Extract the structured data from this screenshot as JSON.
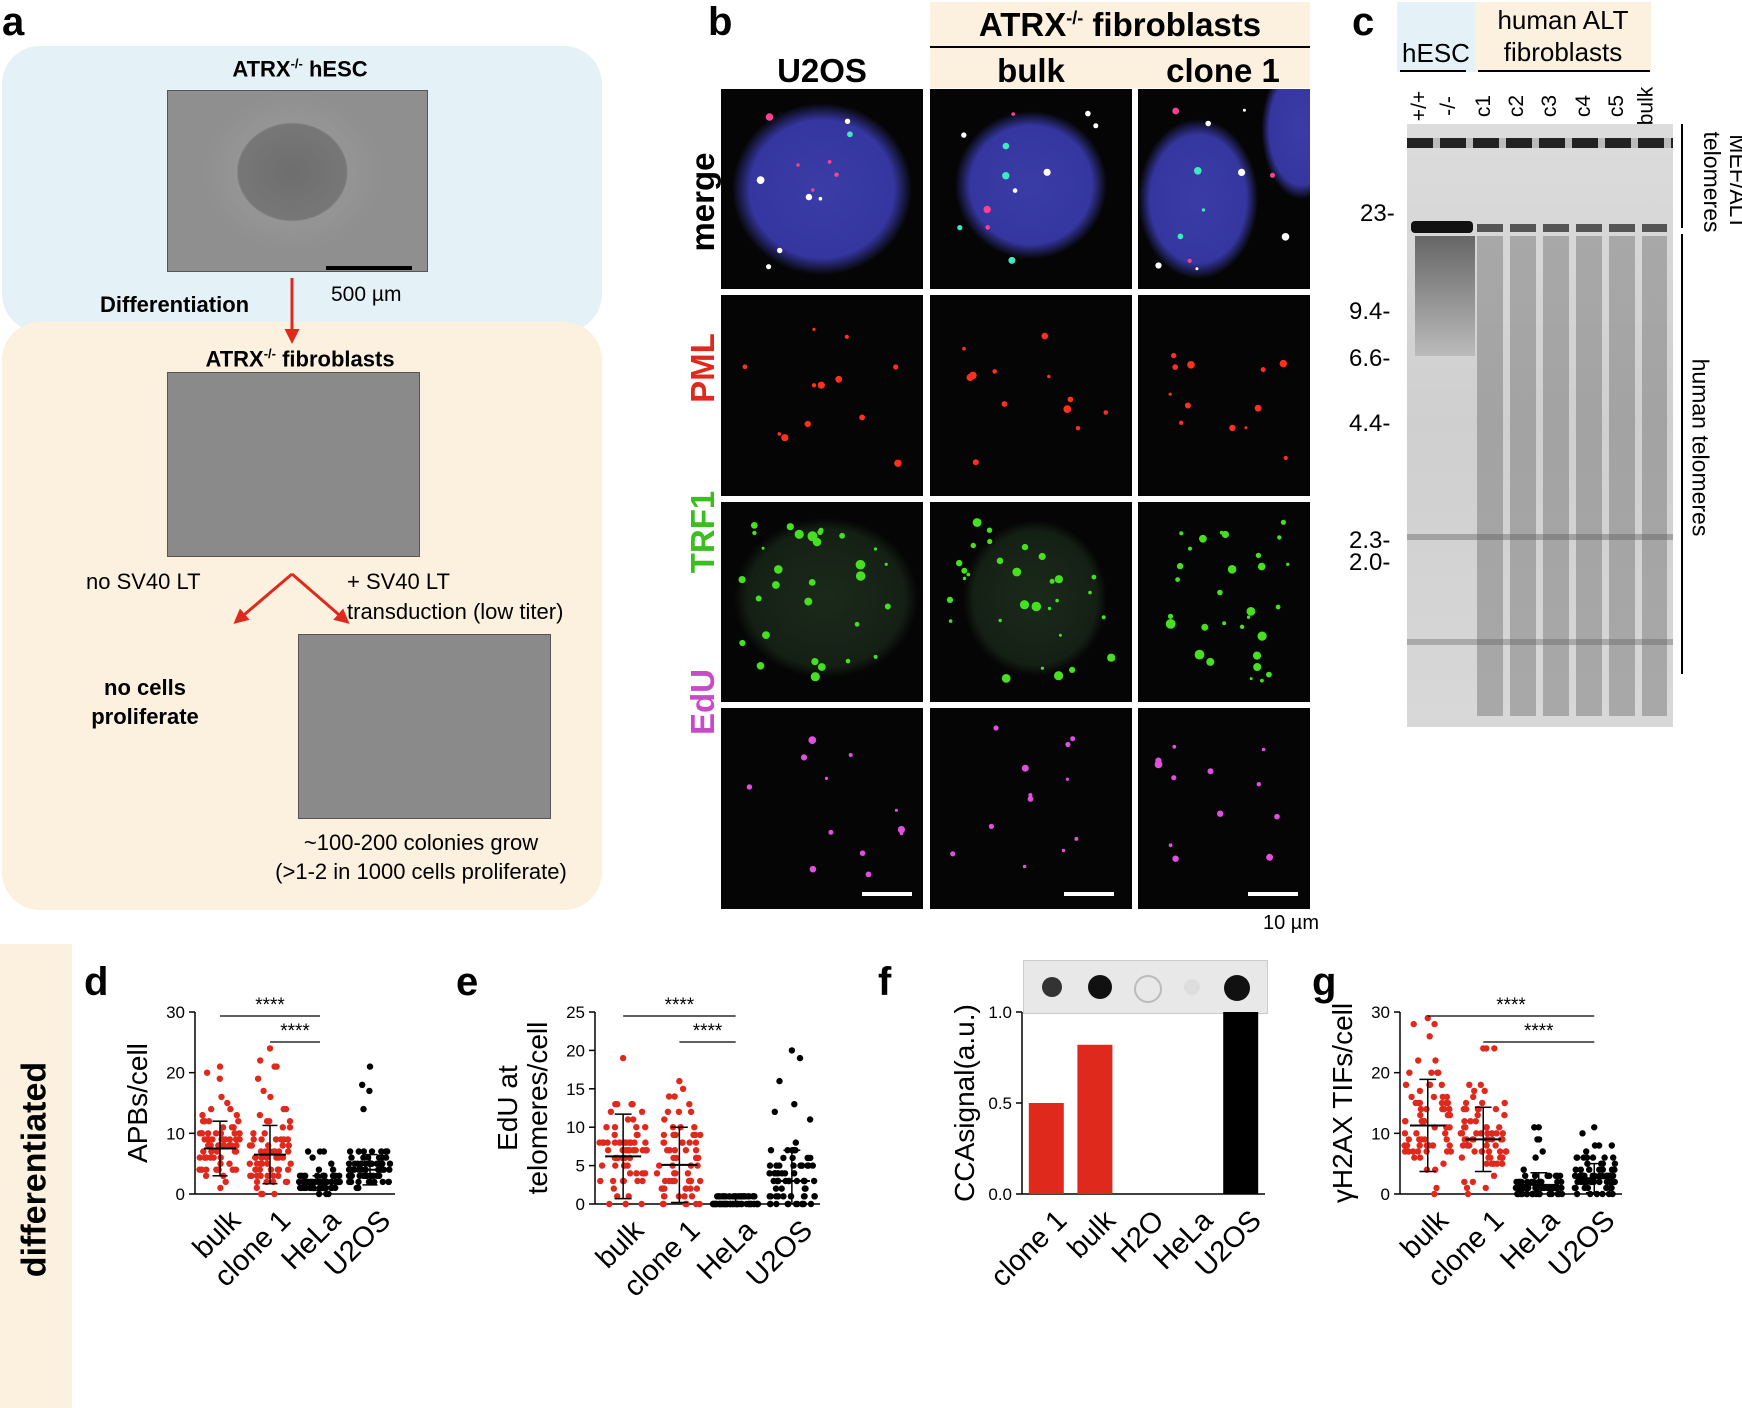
{
  "panel_letters": {
    "a": "a",
    "b": "b",
    "c": "c",
    "d": "d",
    "e": "e",
    "f": "f",
    "g": "g"
  },
  "colors": {
    "hesc_bg": "#e4f1f6",
    "fibro_bg": "#fcf0de",
    "arrow": "#e0291d",
    "red": "#e0291d",
    "pml": "#e0291d",
    "trf1": "#3bbf1e",
    "edu": "#c94ac8",
    "black": "#000000"
  },
  "panel_a": {
    "hesc_title_pre": "ATRX",
    "hesc_title_sup": "-/-",
    "hesc_title_post": " hESC",
    "scale_bar": "500 µm",
    "differentiation": "Differentiation",
    "fibro_title_pre": "ATRX",
    "fibro_title_sup": "-/-",
    "fibro_title_post": " fibroblasts",
    "no_sv40": "no SV40 LT",
    "plus_sv40_1": "+ SV40 LT",
    "plus_sv40_2": "transduction (low titer)",
    "no_cells_1": "no cells",
    "no_cells_2": "proliferate",
    "colonies_1": "~100-200 colonies grow",
    "colonies_2": "(>1-2 in 1000 cells proliferate)"
  },
  "panel_b": {
    "group_title_pre": "ATRX",
    "group_title_sup": "-/-",
    "group_title_post": " fibroblasts",
    "columns": [
      "U2OS",
      "bulk",
      "clone 1"
    ],
    "rows": [
      "merge",
      "PML",
      "TRF1",
      "EdU"
    ],
    "scale": "10 µm"
  },
  "panel_c": {
    "hesc": "hESC",
    "alt_1": "human ALT",
    "alt_2": "fibroblasts",
    "lanes": [
      "+/+",
      "-/-",
      "c1",
      "c2",
      "c3",
      "c4",
      "c5",
      "bulk"
    ],
    "markers": [
      "23-",
      "9.4-",
      "6.6-",
      "4.4-",
      "2.3-",
      "2.0-"
    ],
    "right_top_1": "MEF/ALT",
    "right_top_2": "telomeres",
    "right_bottom": "human telomeres"
  },
  "side_label": "differentiated",
  "chart_data": [
    {
      "panel": "d",
      "type": "scatter",
      "ylabel": "APBs/cell",
      "ylim": [
        0,
        30
      ],
      "yticks": [
        0,
        10,
        20,
        30
      ],
      "categories": [
        "bulk",
        "clone 1",
        "HeLa",
        "U2OS"
      ],
      "means": [
        7.5,
        6.5,
        1.8,
        4.0
      ],
      "sd": [
        4.5,
        4.8,
        1.2,
        2.5
      ],
      "series_color": [
        "red",
        "red",
        "black",
        "black"
      ],
      "max": [
        21,
        24,
        7,
        21
      ],
      "significance": [
        {
          "from": "bulk",
          "to": "HeLa",
          "label": "****"
        },
        {
          "from": "clone 1",
          "to": "HeLa",
          "label": "****"
        }
      ]
    },
    {
      "panel": "e",
      "type": "scatter",
      "ylabel": "EdU at telomeres/cell",
      "ylim": [
        0,
        25
      ],
      "yticks": [
        0,
        5,
        10,
        15,
        20,
        25
      ],
      "categories": [
        "bulk",
        "clone 1",
        "HeLa",
        "U2OS"
      ],
      "means": [
        6.2,
        5.1,
        0.2,
        3.0
      ],
      "sd": [
        5.5,
        4.9,
        0.5,
        4.0
      ],
      "series_color": [
        "red",
        "red",
        "black",
        "black"
      ],
      "max": [
        19,
        16,
        1,
        20
      ],
      "significance": [
        {
          "from": "bulk",
          "to": "HeLa",
          "label": "****"
        },
        {
          "from": "clone 1",
          "to": "HeLa",
          "label": "****"
        }
      ]
    },
    {
      "panel": "f",
      "type": "bar",
      "ylabel": "CCAsignal(a.u.)",
      "ylim": [
        0,
        1.0
      ],
      "yticks": [
        0.0,
        0.5,
        1.0
      ],
      "categories": [
        "clone 1",
        "bulk",
        "H2O",
        "HeLa",
        "U2OS"
      ],
      "values": [
        0.5,
        0.82,
        0,
        0,
        1.0
      ],
      "series_color": [
        "red",
        "red",
        "black",
        "black",
        "black"
      ]
    },
    {
      "panel": "g",
      "type": "scatter",
      "ylabel": "γH2AX TIFs/cell",
      "ylim": [
        0,
        30
      ],
      "yticks": [
        0,
        10,
        20,
        30
      ],
      "categories": [
        "bulk",
        "clone 1",
        "HeLa",
        "U2OS"
      ],
      "means": [
        11.3,
        9.0,
        1.5,
        2.6
      ],
      "sd": [
        7.6,
        5.3,
        2.0,
        2.4
      ],
      "series_color": [
        "red",
        "red",
        "black",
        "black"
      ],
      "max": [
        29,
        24,
        11,
        11
      ],
      "significance": [
        {
          "from": "bulk",
          "to": "U2OS",
          "label": "****"
        },
        {
          "from": "clone 1",
          "to": "U2OS",
          "label": "****"
        }
      ]
    }
  ]
}
